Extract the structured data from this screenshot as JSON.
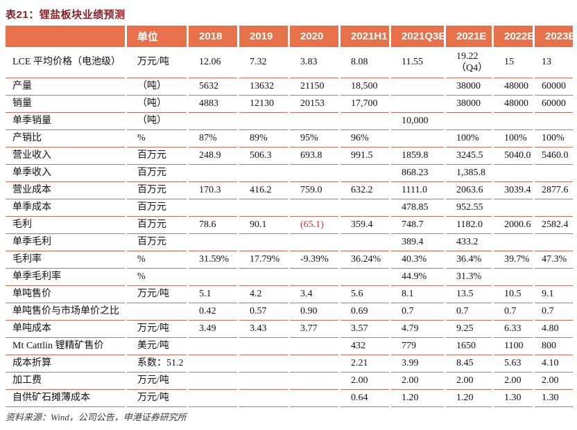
{
  "title": "表21：锂盐板块业绩预测",
  "colors": {
    "header_bg": "#E7714B",
    "title_text": "#8A2026",
    "row_line": "#D06B50",
    "negative_value": "#EE2222"
  },
  "table": {
    "columns": [
      "",
      "单位",
      "2018",
      "2019",
      "2020",
      "2021H1",
      "2021Q3E",
      "2021E",
      "2022E",
      "2023E"
    ],
    "rows": [
      {
        "label": "LCE 平均价格（电池级）",
        "unit": "万元/吨",
        "values": [
          "12.06",
          "7.32",
          "3.83",
          "8.08",
          "11.55",
          "19.22\n（Q4）",
          "15",
          "13"
        ]
      },
      {
        "label": "产量",
        "unit": "（吨）",
        "values": [
          "5632",
          "13632",
          "21150",
          "18,500",
          "",
          "38000",
          "48000",
          "60000"
        ]
      },
      {
        "label": "销量",
        "unit": "（吨）",
        "values": [
          "4883",
          "12130",
          "20153",
          "17,700",
          "",
          "38000",
          "48000",
          "60000"
        ]
      },
      {
        "label": "单季销量",
        "unit": "（吨）",
        "values": [
          "",
          "",
          "",
          "",
          "10,000",
          "",
          "",
          ""
        ]
      },
      {
        "label": "产销比",
        "unit": "%",
        "values": [
          "87%",
          "89%",
          "95%",
          "96%",
          "",
          "100%",
          "100%",
          "100%"
        ]
      },
      {
        "label": "营业收入",
        "unit": "百万元",
        "values": [
          "248.9",
          "506.3",
          "693.8",
          "991.5",
          "1859.8",
          "3245.5",
          "5040.0",
          "5460.0"
        ]
      },
      {
        "label": "单季收入",
        "unit": "百万元",
        "values": [
          "",
          "",
          "",
          "",
          "868.23",
          "1,385.8",
          "",
          ""
        ]
      },
      {
        "label": "营业成本",
        "unit": "百万元",
        "values": [
          "170.3",
          "416.2",
          "759.0",
          "632.2",
          "1111.0",
          "2063.6",
          "3039.4",
          "2877.6"
        ]
      },
      {
        "label": "单季成本",
        "unit": "百万元",
        "values": [
          "",
          "",
          "",
          "",
          "478.85",
          "952.55",
          "",
          ""
        ]
      },
      {
        "label": "毛利",
        "unit": "百万元",
        "values": [
          "78.6",
          "90.1",
          "(65.1)",
          "359.4",
          "748.7",
          "1182.0",
          "2000.6",
          "2582.4"
        ],
        "highlight": {
          "2": "negative"
        }
      },
      {
        "label": "单季毛利",
        "unit": "百万元",
        "values": [
          "",
          "",
          "",
          "",
          "389.4",
          "433.2",
          "",
          ""
        ]
      },
      {
        "label": "毛利率",
        "unit": "%",
        "values": [
          "31.59%",
          "17.79%",
          "-9.39%",
          "36.24%",
          "40.3%",
          "36.4%",
          "39.7%",
          "47.3%"
        ]
      },
      {
        "label": "单季毛利率",
        "unit": "%",
        "values": [
          "",
          "",
          "",
          "",
          "44.9%",
          "31.3%",
          "",
          ""
        ]
      },
      {
        "label": "单吨售价",
        "unit": "万元/吨",
        "values": [
          "5.1",
          "4.2",
          "3.4",
          "5.6",
          "8.1",
          "13.5",
          "10.5",
          "9.1"
        ]
      },
      {
        "label": "单吨售价与市场单价之比",
        "unit": "",
        "values": [
          "0.42",
          "0.57",
          "0.90",
          "0.69",
          "0.7",
          "0.7",
          "0.7",
          "0.7"
        ]
      },
      {
        "label": "单吨成本",
        "unit": "万元/吨",
        "values": [
          "3.49",
          "3.43",
          "3.77",
          "3.57",
          "4.79",
          "9.25",
          "6.33",
          "4.80"
        ]
      },
      {
        "label": "Mt Cattlin 锂精矿售价",
        "unit": "美元/吨",
        "values": [
          "",
          "",
          "",
          "432",
          "779",
          "1650",
          "1100",
          "800"
        ]
      },
      {
        "label": "成本折算",
        "unit": "系数：51.2",
        "values": [
          "",
          "",
          "",
          "2.21",
          "3.99",
          "8.45",
          "5.63",
          "4.10"
        ]
      },
      {
        "label": "加工费",
        "unit": "万元/吨",
        "values": [
          "",
          "",
          "",
          "2.00",
          "2.00",
          "2.00",
          "2.00",
          "2.00"
        ]
      },
      {
        "label": "自供矿石摊薄成本",
        "unit": "万元/吨",
        "values": [
          "",
          "",
          "",
          "0.64",
          "1.20",
          "1.20",
          "1.30",
          "1.30"
        ]
      }
    ]
  },
  "footer": {
    "source": "资料来源：Wind，公司公告，申港证券研究所"
  }
}
